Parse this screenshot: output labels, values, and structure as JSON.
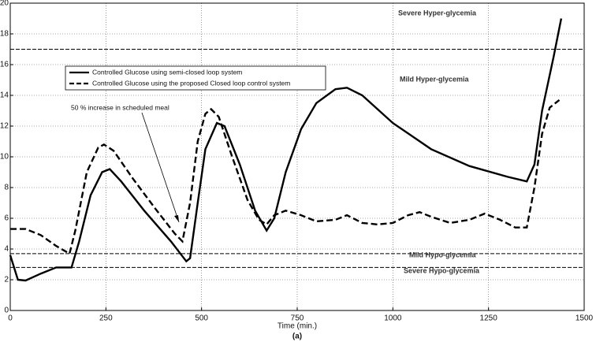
{
  "chart_data": {
    "type": "line",
    "x_label": "Time (min.)",
    "caption": "(a)",
    "xlim": [
      0,
      1500
    ],
    "xticks": [
      0,
      250,
      500,
      750,
      1000,
      1250,
      1500
    ],
    "ylim": [
      0,
      20
    ],
    "yticks": [
      0,
      2,
      4,
      6,
      8,
      10,
      12,
      14,
      16,
      18,
      20
    ],
    "grid": true,
    "legend": "upper left",
    "thresholds": [
      17,
      3.7,
      2.8
    ],
    "region_labels": [
      "Severe Hyper-glycemia",
      "Mild Hyper-glycemia",
      "Mild Hypo-glycemia",
      "Severe Hypo-glycemia"
    ],
    "annotation": "50 % increase in scheduled meal",
    "series": [
      {
        "name": "Controlled Glucose using semi-closed loop system",
        "color": "#000000",
        "dash": "solid",
        "x": [
          0,
          20,
          40,
          80,
          120,
          160,
          180,
          210,
          240,
          260,
          290,
          350,
          420,
          460,
          470,
          490,
          510,
          540,
          560,
          600,
          640,
          670,
          690,
          720,
          760,
          800,
          850,
          880,
          920,
          1000,
          1100,
          1200,
          1300,
          1350,
          1370,
          1390,
          1420,
          1440
        ],
        "values": [
          3.6,
          2.0,
          1.95,
          2.4,
          2.8,
          2.8,
          4.5,
          7.5,
          9.0,
          9.2,
          8.4,
          6.5,
          4.5,
          3.2,
          3.4,
          7.0,
          10.5,
          12.2,
          12.0,
          9.5,
          6.5,
          5.2,
          6.0,
          9.0,
          11.8,
          13.5,
          14.4,
          14.5,
          14.0,
          12.2,
          10.5,
          9.4,
          8.7,
          8.4,
          9.5,
          13.0,
          16.5,
          19.0
        ]
      },
      {
        "name": "Controlled Glucose using the proposed Closed loop control system",
        "color": "#000000",
        "dash": "dashed",
        "x": [
          0,
          40,
          80,
          120,
          155,
          170,
          200,
          230,
          245,
          270,
          320,
          380,
          430,
          450,
          470,
          490,
          510,
          525,
          545,
          580,
          620,
          650,
          670,
          690,
          720,
          760,
          800,
          850,
          880,
          920,
          960,
          1000,
          1040,
          1070,
          1100,
          1150,
          1200,
          1240,
          1280,
          1320,
          1350,
          1370,
          1390,
          1410,
          1435
        ],
        "values": [
          5.3,
          5.3,
          4.9,
          4.2,
          3.7,
          5.2,
          9.0,
          10.6,
          10.8,
          10.4,
          8.6,
          6.6,
          5.0,
          4.5,
          7.0,
          11.0,
          12.8,
          13.1,
          12.6,
          10.0,
          7.2,
          5.9,
          5.6,
          6.2,
          6.5,
          6.2,
          5.8,
          5.9,
          6.2,
          5.7,
          5.6,
          5.7,
          6.2,
          6.4,
          6.1,
          5.7,
          5.9,
          6.3,
          5.9,
          5.4,
          5.4,
          8.0,
          11.5,
          13.2,
          13.7
        ]
      }
    ]
  }
}
